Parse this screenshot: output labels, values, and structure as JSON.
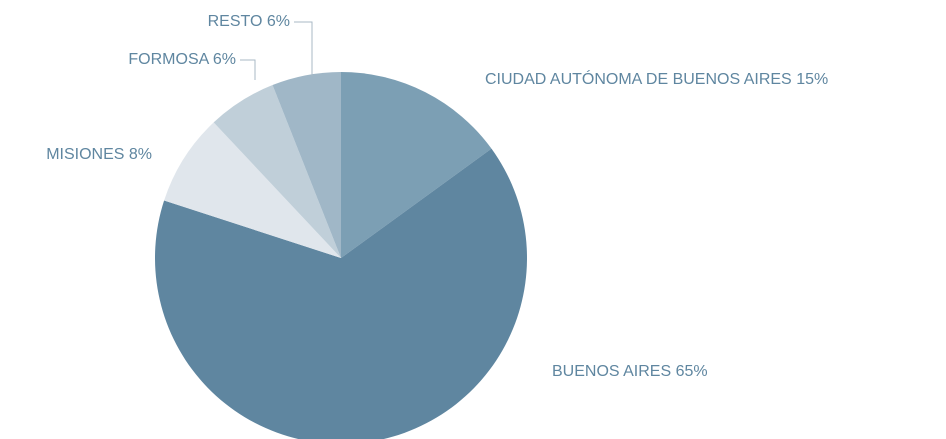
{
  "chart_data": {
    "type": "pie",
    "categories": [
      "CIUDAD AUTÓNOMA DE BUENOS AIRES",
      "BUENOS AIRES",
      "MISIONES",
      "FORMOSA",
      "RESTO"
    ],
    "values": [
      15,
      65,
      8,
      6,
      6
    ],
    "value_labels": [
      "15%",
      "65%",
      "8%",
      "6%",
      "6%"
    ],
    "colors": [
      "#7c9fb4",
      "#5f86a0",
      "#e0e6ec",
      "#c0cfd9",
      "#a0b7c7"
    ]
  }
}
